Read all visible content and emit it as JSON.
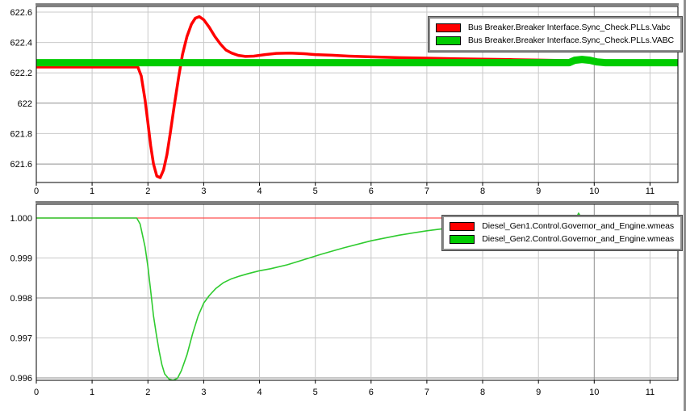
{
  "colors": {
    "background": "#ffffff",
    "grid": "#c9c9c9",
    "grid_major": "#8f8f8f",
    "frame": "#000000",
    "panel_top_edge": "#808080",
    "red_series": "#ff0000",
    "green_series": "#00cc00"
  },
  "chart_data": [
    {
      "type": "line",
      "xlim": [
        0,
        11.5
      ],
      "ylim": [
        621.478,
        622.637
      ],
      "x_ticks": [
        0,
        1,
        2,
        3,
        4,
        5,
        6,
        7,
        8,
        9,
        10,
        11
      ],
      "y_ticks": [
        {
          "v": 622.6,
          "label": "622.6"
        },
        {
          "v": 622.4,
          "label": "622.4"
        },
        {
          "v": 622.2,
          "label": "622.2"
        },
        {
          "v": 622.0,
          "label": "622"
        },
        {
          "v": 621.8,
          "label": "621.8"
        },
        {
          "v": 621.6,
          "label": "621.6"
        }
      ],
      "major_x": [
        10
      ],
      "major_y": [
        622.0,
        621.6
      ],
      "grid": true,
      "legend_position": "top-right",
      "legend": [
        {
          "label": "Bus Breaker.Breaker Interface.Sync_Check.PLLs.Vabc",
          "color": "#ff0000"
        },
        {
          "label": "Bus Breaker.Breaker Interface.Sync_Check.PLLs.VABC",
          "color": "#00cc00"
        }
      ],
      "series": [
        {
          "name": "Vabc",
          "color": "#ff0000",
          "width": 3.5,
          "points": [
            [
              0,
              622.238
            ],
            [
              0.6,
              622.238
            ],
            [
              1.2,
              622.238
            ],
            [
              1.5,
              622.238
            ],
            [
              1.82,
              622.238
            ],
            [
              1.88,
              622.18
            ],
            [
              1.95,
              622.02
            ],
            [
              2.0,
              621.87
            ],
            [
              2.05,
              621.72
            ],
            [
              2.1,
              621.6
            ],
            [
              2.16,
              621.52
            ],
            [
              2.22,
              621.51
            ],
            [
              2.28,
              621.56
            ],
            [
              2.34,
              621.66
            ],
            [
              2.4,
              621.8
            ],
            [
              2.47,
              621.98
            ],
            [
              2.55,
              622.17
            ],
            [
              2.62,
              622.32
            ],
            [
              2.7,
              622.44
            ],
            [
              2.78,
              622.52
            ],
            [
              2.85,
              622.56
            ],
            [
              2.92,
              622.57
            ],
            [
              3.0,
              622.55
            ],
            [
              3.1,
              622.5
            ],
            [
              3.2,
              622.44
            ],
            [
              3.3,
              622.39
            ],
            [
              3.4,
              622.35
            ],
            [
              3.5,
              622.33
            ],
            [
              3.62,
              622.315
            ],
            [
              3.75,
              622.308
            ],
            [
              3.9,
              622.31
            ],
            [
              4.1,
              622.32
            ],
            [
              4.3,
              622.328
            ],
            [
              4.55,
              622.33
            ],
            [
              4.8,
              622.326
            ],
            [
              5.0,
              622.32
            ],
            [
              5.3,
              622.316
            ],
            [
              5.6,
              622.31
            ],
            [
              6.0,
              622.305
            ],
            [
              6.5,
              622.3
            ],
            [
              7.0,
              622.297
            ],
            [
              7.5,
              622.293
            ],
            [
              8.0,
              622.29
            ],
            [
              8.5,
              622.287
            ],
            [
              9.0,
              622.284
            ],
            [
              9.5,
              622.281
            ],
            [
              9.9,
              622.278
            ],
            [
              10.3,
              622.274
            ],
            [
              10.8,
              622.271
            ],
            [
              11.5,
              622.27
            ]
          ]
        },
        {
          "name": "VABC",
          "color": "#00cc00",
          "width": 9,
          "points": [
            [
              0,
              622.267
            ],
            [
              9.55,
              622.267
            ],
            [
              9.65,
              622.283
            ],
            [
              9.78,
              622.288
            ],
            [
              9.92,
              622.283
            ],
            [
              10.05,
              622.272
            ],
            [
              10.2,
              622.267
            ],
            [
              11.5,
              622.267
            ]
          ]
        }
      ]
    },
    {
      "type": "line",
      "xlim": [
        0,
        11.5
      ],
      "ylim": [
        0.995939,
        1.000343
      ],
      "x_ticks": [
        0,
        1,
        2,
        3,
        4,
        5,
        6,
        7,
        8,
        9,
        10,
        11
      ],
      "y_ticks": [
        {
          "v": 1.0,
          "label": "1.000"
        },
        {
          "v": 0.999,
          "label": "0.999"
        },
        {
          "v": 0.998,
          "label": "0.998"
        },
        {
          "v": 0.997,
          "label": "0.997"
        },
        {
          "v": 0.996,
          "label": "0.996"
        }
      ],
      "major_x": [
        10
      ],
      "major_y": [
        0.998,
        0.996
      ],
      "grid": true,
      "legend_position": "top-right",
      "legend": [
        {
          "label": "Diesel_Gen1.Control.Governor_and_Engine.wmeas",
          "color": "#ff0000"
        },
        {
          "label": "Diesel_Gen2.Control.Governor_and_Engine.wmeas",
          "color": "#00cc00"
        }
      ],
      "series": [
        {
          "name": "Gen1-wmeas",
          "color": "#ff5050",
          "width": 1.2,
          "end_marker": true,
          "points": [
            [
              0,
              1.0
            ],
            [
              11.5,
              1.0
            ]
          ]
        },
        {
          "name": "Gen2-wmeas",
          "color": "#2fcb2f",
          "width": 1.6,
          "points": [
            [
              0,
              1.0
            ],
            [
              1.0,
              1.0
            ],
            [
              1.8,
              1.0
            ],
            [
              1.86,
              0.99985
            ],
            [
              1.95,
              0.99927
            ],
            [
              2.0,
              0.99878
            ],
            [
              2.05,
              0.99818
            ],
            [
              2.1,
              0.99755
            ],
            [
              2.15,
              0.9971
            ],
            [
              2.2,
              0.99668
            ],
            [
              2.25,
              0.99634
            ],
            [
              2.3,
              0.9961
            ],
            [
              2.38,
              0.99597
            ],
            [
              2.45,
              0.99594
            ],
            [
              2.53,
              0.99599
            ],
            [
              2.6,
              0.99618
            ],
            [
              2.7,
              0.99658
            ],
            [
              2.8,
              0.9971
            ],
            [
              2.9,
              0.99755
            ],
            [
              3.0,
              0.99787
            ],
            [
              3.1,
              0.99806
            ],
            [
              3.22,
              0.99824
            ],
            [
              3.35,
              0.99838
            ],
            [
              3.5,
              0.99848
            ],
            [
              3.65,
              0.99855
            ],
            [
              3.8,
              0.99861
            ],
            [
              4.0,
              0.99868
            ],
            [
              4.2,
              0.99873
            ],
            [
              4.5,
              0.99883
            ],
            [
              4.8,
              0.99896
            ],
            [
              5.1,
              0.99909
            ],
            [
              5.5,
              0.99925
            ],
            [
              6.0,
              0.99943
            ],
            [
              6.5,
              0.99957
            ],
            [
              7.0,
              0.99968
            ],
            [
              7.5,
              0.99977
            ],
            [
              8.0,
              0.99984
            ],
            [
              8.5,
              0.99989
            ],
            [
              9.0,
              0.99993
            ],
            [
              9.4,
              0.99996
            ],
            [
              9.6,
              0.99998
            ],
            [
              9.68,
              1.0
            ],
            [
              9.72,
              1.00012
            ],
            [
              9.77,
              1.00001
            ],
            [
              9.85,
              0.99998
            ],
            [
              9.95,
              1.00002
            ],
            [
              10.1,
              1.0
            ],
            [
              10.6,
              1.0
            ],
            [
              11.0,
              1.0
            ],
            [
              11.5,
              1.0
            ]
          ]
        }
      ]
    }
  ]
}
